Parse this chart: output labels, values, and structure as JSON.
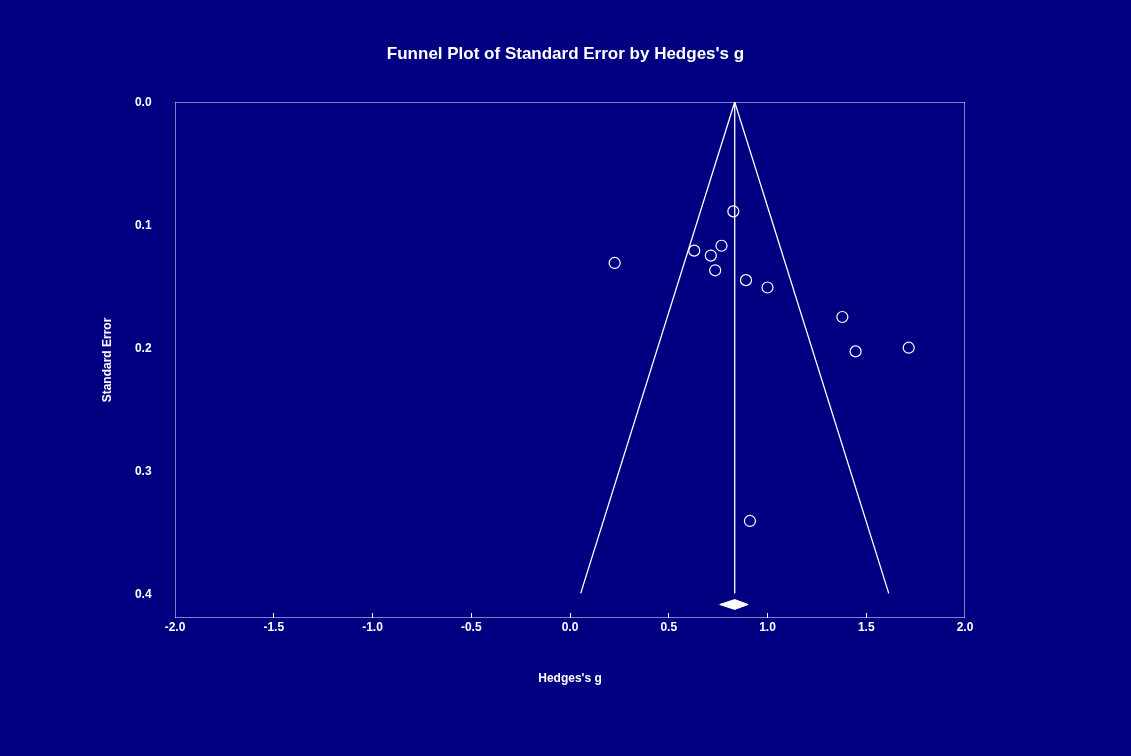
{
  "chart_data": {
    "type": "scatter",
    "title": "Funnel Plot of Standard Error by Hedges's g",
    "xlabel": "Hedges's g",
    "ylabel": "Standard Error",
    "series": [
      {
        "color": "#ffffff",
        "marker": "circle",
        "x": [
          0.827,
          0.226,
          0.629,
          0.713,
          0.767,
          0.735,
          0.891,
          1.0,
          1.379,
          1.446,
          1.715,
          0.911
        ],
        "values": [
          0.089,
          0.131,
          0.121,
          0.125,
          0.117,
          0.137,
          0.145,
          0.151,
          0.175,
          0.203,
          0.2,
          0.341
        ]
      },
      {
        "type": "line",
        "color": "#ffffff",
        "marker": "none",
        "x": [
          0.054,
          0.834,
          1.614
        ],
        "values": [
          0.4,
          0.0,
          0.4
        ]
      },
      {
        "type": "line",
        "color": "#ffffff",
        "marker": "none",
        "x": [
          0.834,
          0.834
        ],
        "values": [
          0.0,
          0.4
        ]
      },
      {
        "type": "area",
        "color": "#ffffff",
        "marker": "none",
        "x": [
          0.758,
          0.834,
          0.902,
          0.834,
          0.758
        ],
        "values": [
          0.409,
          0.405,
          0.409,
          0.413,
          0.409
        ]
      }
    ],
    "xlim": [
      -2.0,
      2.0
    ],
    "xticks": [
      {
        "value": -2,
        "label": "-2.0"
      },
      {
        "value": -1.5,
        "label": "-1.5"
      },
      {
        "value": -1,
        "label": "-1.0"
      },
      {
        "value": -0.5,
        "label": "-0.5"
      },
      {
        "value": 0,
        "label": "0.0"
      },
      {
        "value": 0.5,
        "label": "0.5"
      },
      {
        "value": 1,
        "label": "1.0"
      },
      {
        "value": 1.5,
        "label": "1.5"
      },
      {
        "value": 2,
        "label": "2.0"
      }
    ],
    "ylim": [
      0.42,
      0.0
    ],
    "yticks": [
      {
        "value": 0,
        "label": "0.0"
      },
      {
        "value": 0.1,
        "label": "0.1"
      },
      {
        "value": 0.2,
        "label": "0.2"
      },
      {
        "value": 0.3,
        "label": "0.3"
      },
      {
        "value": 0.4,
        "label": "0.4"
      }
    ],
    "grid": false
  }
}
